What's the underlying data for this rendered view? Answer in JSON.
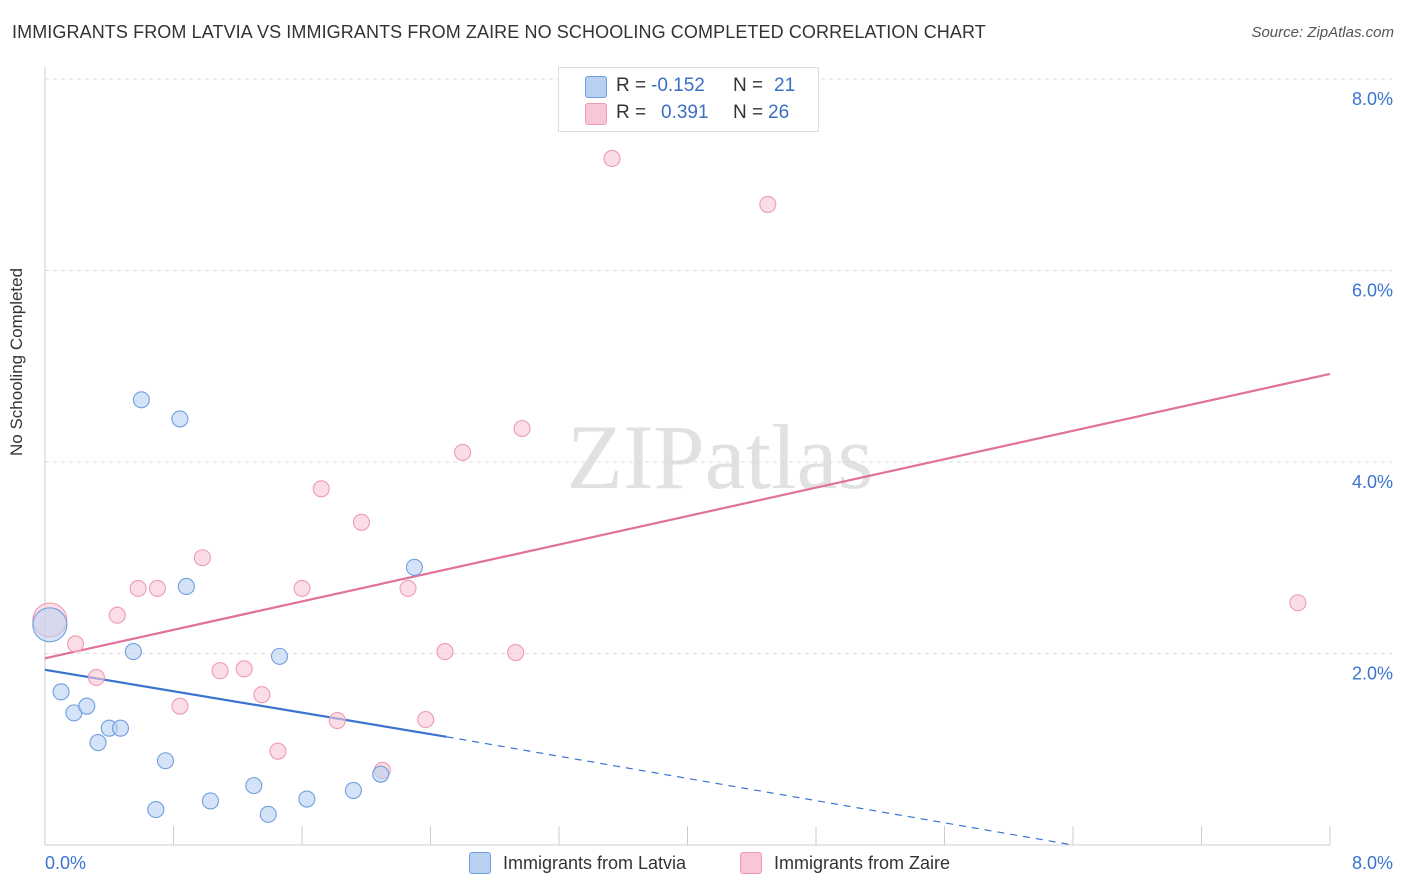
{
  "title": "IMMIGRANTS FROM LATVIA VS IMMIGRANTS FROM ZAIRE NO SCHOOLING COMPLETED CORRELATION CHART",
  "source": "Source: ZipAtlas.com",
  "watermark": "ZIPatlas",
  "legend_stats": [
    {
      "r_label": "R =",
      "r_value": "-0.152",
      "n_label": "N =",
      "n_value": "21",
      "color": "#b8d0f2"
    },
    {
      "r_label": "R =",
      "r_value": "0.391",
      "n_label": "N =",
      "n_value": "26",
      "color": "#f9c6d6"
    }
  ],
  "chart_data": {
    "type": "scatter",
    "title": "IMMIGRANTS FROM LATVIA VS IMMIGRANTS FROM ZAIRE NO SCHOOLING COMPLETED CORRELATION CHART",
    "xlabel": "",
    "ylabel": "No Schooling Completed",
    "xlim": [
      0,
      8
    ],
    "ylim": [
      0,
      8
    ],
    "x_tick_labels": [
      "0.0%",
      "8.0%"
    ],
    "y_tick_labels": [
      "2.0%",
      "4.0%",
      "6.0%",
      "8.0%"
    ],
    "y_ticks": [
      2,
      4,
      6,
      8
    ],
    "grid": true,
    "legend_position": "bottom",
    "series": [
      {
        "name": "Immigrants from Latvia",
        "color": "#6f9fe0",
        "fill": "#b8d0f2",
        "line_color": "#3a74d0",
        "points": [
          [
            0.03,
            2.3
          ],
          [
            0.6,
            4.65
          ],
          [
            0.84,
            4.45
          ],
          [
            0.88,
            2.7
          ],
          [
            0.55,
            2.02
          ],
          [
            2.3,
            2.9
          ],
          [
            1.46,
            1.97
          ],
          [
            0.1,
            1.6
          ],
          [
            0.18,
            1.38
          ],
          [
            0.26,
            1.45
          ],
          [
            0.33,
            1.07
          ],
          [
            0.4,
            1.22
          ],
          [
            0.47,
            1.22
          ],
          [
            0.75,
            0.88
          ],
          [
            0.69,
            0.37
          ],
          [
            1.03,
            0.46
          ],
          [
            1.3,
            0.62
          ],
          [
            1.39,
            0.32
          ],
          [
            1.63,
            0.48
          ],
          [
            1.92,
            0.57
          ],
          [
            2.09,
            0.74
          ]
        ],
        "trend": {
          "x_start": 0.0,
          "y_start": 1.83,
          "x_solid_end": 2.5,
          "y_solid_end": 1.13,
          "x_dashed_end": 6.4,
          "y_dashed_end": 0.0
        }
      },
      {
        "name": "Immigrants from Zaire",
        "color": "#ee9ab4",
        "fill": "#f9c6d6",
        "line_color": "#e0719a",
        "points": [
          [
            0.03,
            2.35
          ],
          [
            3.53,
            7.17
          ],
          [
            4.5,
            6.69
          ],
          [
            2.97,
            4.35
          ],
          [
            2.6,
            4.1
          ],
          [
            1.72,
            3.72
          ],
          [
            1.97,
            3.37
          ],
          [
            0.98,
            3.0
          ],
          [
            0.58,
            2.68
          ],
          [
            0.7,
            2.68
          ],
          [
            1.6,
            2.68
          ],
          [
            2.26,
            2.68
          ],
          [
            0.45,
            2.4
          ],
          [
            0.19,
            2.1
          ],
          [
            0.32,
            1.75
          ],
          [
            1.09,
            1.82
          ],
          [
            1.24,
            1.84
          ],
          [
            1.35,
            1.57
          ],
          [
            2.49,
            2.02
          ],
          [
            2.93,
            2.01
          ],
          [
            0.84,
            1.45
          ],
          [
            1.45,
            0.98
          ],
          [
            1.82,
            1.3
          ],
          [
            2.37,
            1.31
          ],
          [
            2.1,
            0.78
          ],
          [
            7.8,
            2.53
          ]
        ],
        "trend": {
          "x_start": 0.0,
          "y_start": 1.95,
          "x_solid_end": 8.0,
          "y_solid_end": 4.92
        }
      }
    ]
  }
}
